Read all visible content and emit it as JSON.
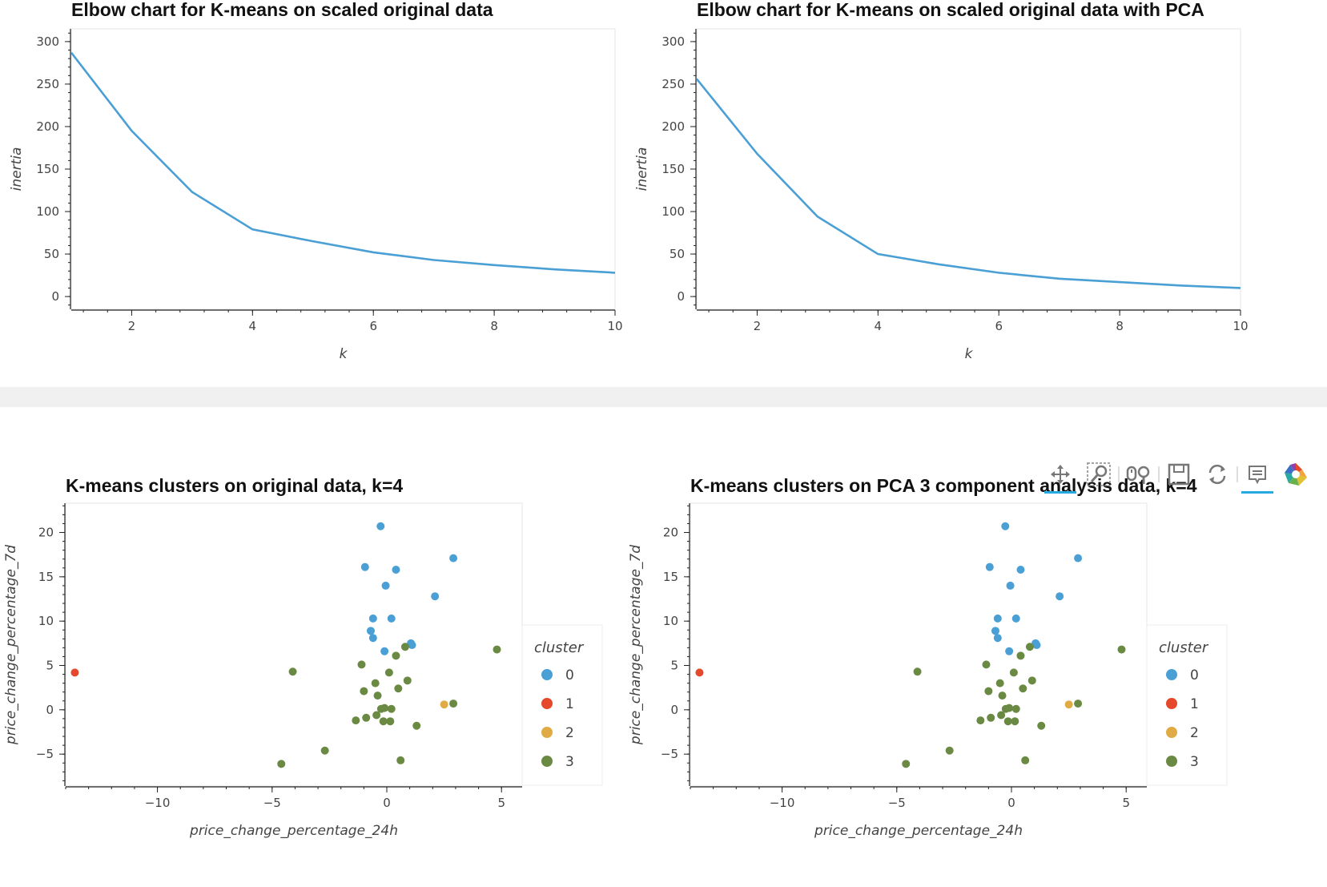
{
  "toolbar": {
    "tools": [
      "pan-icon",
      "box-zoom-icon",
      "wheel-zoom-icon",
      "save-icon",
      "reset-icon",
      "hover-icon",
      "bokeh-logo-icon"
    ]
  },
  "chart_data": [
    {
      "type": "line",
      "title": "Elbow chart for K-means on scaled original data",
      "xlabel": "k",
      "ylabel": "inertia",
      "xlim": [
        1,
        10
      ],
      "ylim": [
        -15,
        315
      ],
      "xticks": [
        2,
        4,
        6,
        8,
        10
      ],
      "yticks": [
        0,
        50,
        100,
        150,
        200,
        250,
        300
      ],
      "x": [
        1,
        2,
        3,
        4,
        5,
        6,
        7,
        8,
        9,
        10
      ],
      "y": [
        287,
        195,
        123,
        79,
        65,
        52,
        43,
        37,
        32,
        28
      ],
      "color": "#4a9fd5",
      "grid": false
    },
    {
      "type": "line",
      "title": "Elbow chart for K-means on scaled original data with PCA",
      "xlabel": "k",
      "ylabel": "inertia",
      "xlim": [
        1,
        10
      ],
      "ylim": [
        -15,
        315
      ],
      "xticks": [
        2,
        4,
        6,
        8,
        10
      ],
      "yticks": [
        0,
        50,
        100,
        150,
        200,
        250,
        300
      ],
      "x": [
        1,
        2,
        3,
        4,
        5,
        6,
        7,
        8,
        9,
        10
      ],
      "y": [
        256,
        168,
        94,
        50,
        38,
        28,
        21,
        17,
        13,
        10
      ],
      "color": "#4a9fd5",
      "grid": false
    },
    {
      "type": "scatter",
      "title": "K-means clusters on original data, k=4",
      "xlabel": "price_change_percentage_24h",
      "ylabel": "price_change_percentage_7d",
      "xlim": [
        -14,
        5.9
      ],
      "ylim": [
        -8.6,
        23.3
      ],
      "xticks": [
        -10,
        -5,
        0,
        5
      ],
      "yticks": [
        -5,
        0,
        5,
        10,
        15,
        20
      ],
      "legend_title": "cluster",
      "legend_position": "right",
      "clusters": [
        "0",
        "1",
        "2",
        "3"
      ],
      "colors": [
        "#4a9fd5",
        "#e5482a",
        "#e0ab44",
        "#6a8a43"
      ],
      "points": [
        {
          "x": -0.27,
          "y": 20.7,
          "c": 0
        },
        {
          "x": 2.9,
          "y": 17.1,
          "c": 0
        },
        {
          "x": -0.95,
          "y": 16.1,
          "c": 0
        },
        {
          "x": 0.4,
          "y": 15.8,
          "c": 0
        },
        {
          "x": -0.05,
          "y": 14.0,
          "c": 0
        },
        {
          "x": 2.1,
          "y": 12.8,
          "c": 0
        },
        {
          "x": -0.6,
          "y": 10.3,
          "c": 0
        },
        {
          "x": 0.2,
          "y": 10.3,
          "c": 0
        },
        {
          "x": -0.7,
          "y": 8.9,
          "c": 0
        },
        {
          "x": -0.6,
          "y": 8.1,
          "c": 0
        },
        {
          "x": 1.05,
          "y": 7.5,
          "c": 0
        },
        {
          "x": 1.1,
          "y": 7.3,
          "c": 0
        },
        {
          "x": -0.1,
          "y": 6.6,
          "c": 0
        },
        {
          "x": -13.6,
          "y": 4.2,
          "c": 1
        },
        {
          "x": 2.5,
          "y": 0.6,
          "c": 2
        },
        {
          "x": 4.8,
          "y": 6.8,
          "c": 3
        },
        {
          "x": 0.8,
          "y": 7.1,
          "c": 3
        },
        {
          "x": 0.4,
          "y": 6.1,
          "c": 3
        },
        {
          "x": -4.1,
          "y": 4.3,
          "c": 3
        },
        {
          "x": -1.1,
          "y": 5.1,
          "c": 3
        },
        {
          "x": 0.1,
          "y": 4.2,
          "c": 3
        },
        {
          "x": 0.9,
          "y": 3.3,
          "c": 3
        },
        {
          "x": -0.5,
          "y": 3.0,
          "c": 3
        },
        {
          "x": 0.5,
          "y": 2.4,
          "c": 3
        },
        {
          "x": -1.0,
          "y": 2.1,
          "c": 3
        },
        {
          "x": -0.4,
          "y": 1.6,
          "c": 3
        },
        {
          "x": 2.9,
          "y": 0.7,
          "c": 3
        },
        {
          "x": -0.25,
          "y": 0.1,
          "c": 3
        },
        {
          "x": 0.2,
          "y": 0.1,
          "c": 3
        },
        {
          "x": -0.1,
          "y": 0.2,
          "c": 3
        },
        {
          "x": -0.45,
          "y": -0.6,
          "c": 3
        },
        {
          "x": -0.9,
          "y": -0.9,
          "c": 3
        },
        {
          "x": -1.35,
          "y": -1.2,
          "c": 3
        },
        {
          "x": -0.15,
          "y": -1.3,
          "c": 3
        },
        {
          "x": 0.15,
          "y": -1.3,
          "c": 3
        },
        {
          "x": 1.3,
          "y": -1.8,
          "c": 3
        },
        {
          "x": -2.7,
          "y": -4.6,
          "c": 3
        },
        {
          "x": 0.6,
          "y": -5.7,
          "c": 3
        },
        {
          "x": -4.6,
          "y": -6.1,
          "c": 3
        }
      ]
    },
    {
      "type": "scatter",
      "title": "K-means clusters on PCA 3 component analysis data, k=4",
      "xlabel": "price_change_percentage_24h",
      "ylabel": "price_change_percentage_7d",
      "xlim": [
        -14,
        5.9
      ],
      "ylim": [
        -8.6,
        23.3
      ],
      "xticks": [
        -10,
        -5,
        0,
        5
      ],
      "yticks": [
        -5,
        0,
        5,
        10,
        15,
        20
      ],
      "legend_title": "cluster",
      "legend_position": "right",
      "clusters": [
        "0",
        "1",
        "2",
        "3"
      ],
      "colors": [
        "#4a9fd5",
        "#e5482a",
        "#e0ab44",
        "#6a8a43"
      ],
      "points": [
        {
          "x": -0.27,
          "y": 20.7,
          "c": 0
        },
        {
          "x": 2.9,
          "y": 17.1,
          "c": 0
        },
        {
          "x": -0.95,
          "y": 16.1,
          "c": 0
        },
        {
          "x": 0.4,
          "y": 15.8,
          "c": 0
        },
        {
          "x": -0.05,
          "y": 14.0,
          "c": 0
        },
        {
          "x": 2.1,
          "y": 12.8,
          "c": 0
        },
        {
          "x": -0.6,
          "y": 10.3,
          "c": 0
        },
        {
          "x": 0.2,
          "y": 10.3,
          "c": 0
        },
        {
          "x": -0.7,
          "y": 8.9,
          "c": 0
        },
        {
          "x": -0.6,
          "y": 8.1,
          "c": 0
        },
        {
          "x": 1.05,
          "y": 7.5,
          "c": 0
        },
        {
          "x": 1.1,
          "y": 7.3,
          "c": 0
        },
        {
          "x": -0.1,
          "y": 6.6,
          "c": 0
        },
        {
          "x": -13.6,
          "y": 4.2,
          "c": 1
        },
        {
          "x": 2.5,
          "y": 0.6,
          "c": 2
        },
        {
          "x": 4.8,
          "y": 6.8,
          "c": 3
        },
        {
          "x": 0.8,
          "y": 7.1,
          "c": 3
        },
        {
          "x": 0.4,
          "y": 6.1,
          "c": 3
        },
        {
          "x": -4.1,
          "y": 4.3,
          "c": 3
        },
        {
          "x": -1.1,
          "y": 5.1,
          "c": 3
        },
        {
          "x": 0.1,
          "y": 4.2,
          "c": 3
        },
        {
          "x": 0.9,
          "y": 3.3,
          "c": 3
        },
        {
          "x": -0.5,
          "y": 3.0,
          "c": 3
        },
        {
          "x": 0.5,
          "y": 2.4,
          "c": 3
        },
        {
          "x": -1.0,
          "y": 2.1,
          "c": 3
        },
        {
          "x": -0.4,
          "y": 1.6,
          "c": 3
        },
        {
          "x": 2.9,
          "y": 0.7,
          "c": 3
        },
        {
          "x": -0.25,
          "y": 0.1,
          "c": 3
        },
        {
          "x": 0.2,
          "y": 0.1,
          "c": 3
        },
        {
          "x": -0.1,
          "y": 0.2,
          "c": 3
        },
        {
          "x": -0.45,
          "y": -0.6,
          "c": 3
        },
        {
          "x": -0.9,
          "y": -0.9,
          "c": 3
        },
        {
          "x": -1.35,
          "y": -1.2,
          "c": 3
        },
        {
          "x": -0.15,
          "y": -1.3,
          "c": 3
        },
        {
          "x": 0.15,
          "y": -1.3,
          "c": 3
        },
        {
          "x": 1.3,
          "y": -1.8,
          "c": 3
        },
        {
          "x": -2.7,
          "y": -4.6,
          "c": 3
        },
        {
          "x": 0.6,
          "y": -5.7,
          "c": 3
        },
        {
          "x": -4.6,
          "y": -6.1,
          "c": 3
        }
      ]
    }
  ]
}
